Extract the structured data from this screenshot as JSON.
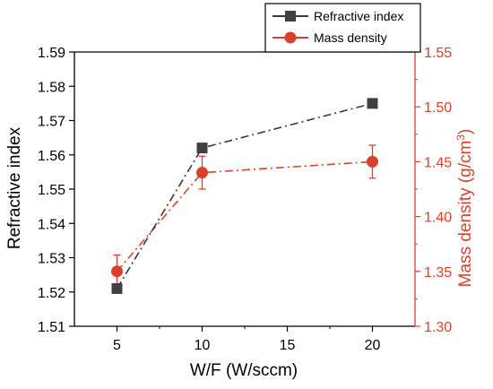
{
  "chart_data": {
    "type": "line",
    "x": [
      5,
      10,
      20
    ],
    "xlabel": "W/F (W/sccm)",
    "xlim": [
      2.5,
      22.5
    ],
    "xticks": [
      "5",
      "10",
      "15",
      "20"
    ],
    "ylabel_left": "Refractive index",
    "ylim_left": [
      1.51,
      1.59
    ],
    "yticks_left": [
      "1.51",
      "1.52",
      "1.53",
      "1.54",
      "1.55",
      "1.56",
      "1.57",
      "1.58",
      "1.59"
    ],
    "ylabel_right": "Mass density (g/cm",
    "ylabel_right_sup": "3",
    "ylabel_right_close": ")",
    "ylim_right": [
      1.3,
      1.55
    ],
    "yticks_right": [
      "1.30",
      "1.35",
      "1.40",
      "1.45",
      "1.50",
      "1.55"
    ],
    "legend_position": "top-right",
    "grid": false,
    "series": [
      {
        "name": "Refractive index",
        "axis": "left",
        "marker": "square",
        "color": "#3a3a3a",
        "values": [
          1.521,
          1.562,
          1.575
        ]
      },
      {
        "name": "Mass density",
        "axis": "right",
        "marker": "circle",
        "color": "#d9412b",
        "values": [
          1.35,
          1.44,
          1.45
        ],
        "errors": [
          0.015,
          0.015,
          0.015
        ]
      }
    ]
  }
}
